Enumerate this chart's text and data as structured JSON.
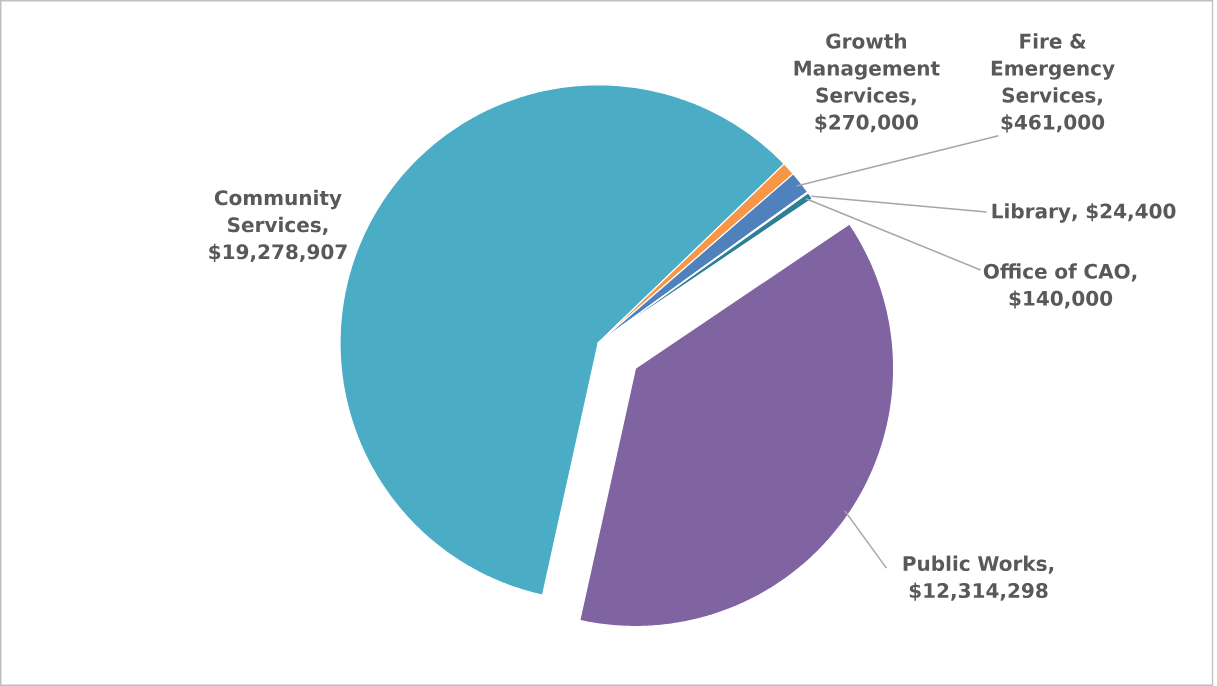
{
  "chart_data": {
    "type": "pie",
    "categories": [
      "Public Works",
      "Community Services",
      "Growth Management Services",
      "Fire & Emergency Services",
      "Library",
      "Office of CAO"
    ],
    "values": [
      12314298,
      19278907,
      270000,
      461000,
      24400,
      140000
    ],
    "value_labels": [
      ", $12,314,298",
      ", $19,278,907",
      ", $270,000",
      ", $461,000",
      ",  $24,400",
      ", $140,000"
    ],
    "colors": [
      "#8064a2",
      "#4bacc6",
      "#f79646",
      "#4f81bd",
      "#9bbb59",
      "#2c7f94"
    ]
  }
}
